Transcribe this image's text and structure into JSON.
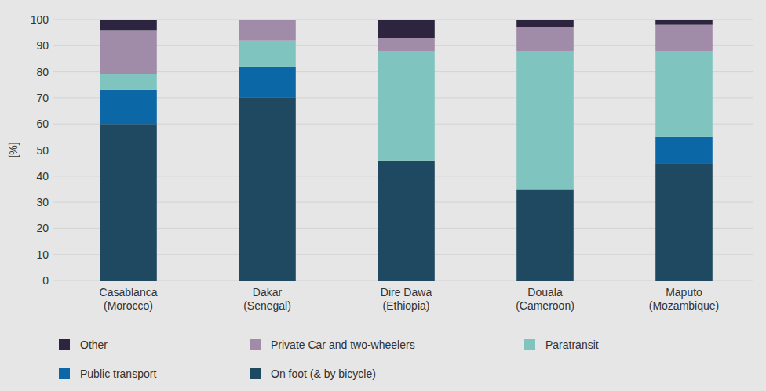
{
  "chart_data": {
    "type": "bar",
    "stacked": true,
    "grid": true,
    "legend": "bottom",
    "ylabel": "[%]",
    "categories": [
      "Casablanca\n(Morocco)",
      "Dakar\n(Senegal)",
      "Dire Dawa\n(Ethiopia)",
      "Douala\n(Cameroon)",
      "Maputo\n(Mozambique)"
    ],
    "ylim": [
      0,
      100
    ],
    "yticks": [
      0,
      10,
      20,
      30,
      40,
      50,
      60,
      70,
      80,
      90,
      100
    ],
    "series": [
      {
        "name": "On foot (& by bicycle)",
        "color": "#1e4961",
        "values": [
          60,
          70,
          46,
          35,
          45
        ]
      },
      {
        "name": "Public transport",
        "color": "#0b67a6",
        "values": [
          13,
          12,
          0,
          0,
          10
        ]
      },
      {
        "name": "Paratransit",
        "color": "#80c4c0",
        "values": [
          6,
          10,
          42,
          53,
          33
        ]
      },
      {
        "name": "Private Car and two-wheelers",
        "color": "#a08ba8",
        "values": [
          17,
          8,
          5,
          9,
          10
        ]
      },
      {
        "name": "Other",
        "color": "#2d2540",
        "values": [
          4,
          0,
          7,
          3,
          2
        ]
      }
    ]
  }
}
